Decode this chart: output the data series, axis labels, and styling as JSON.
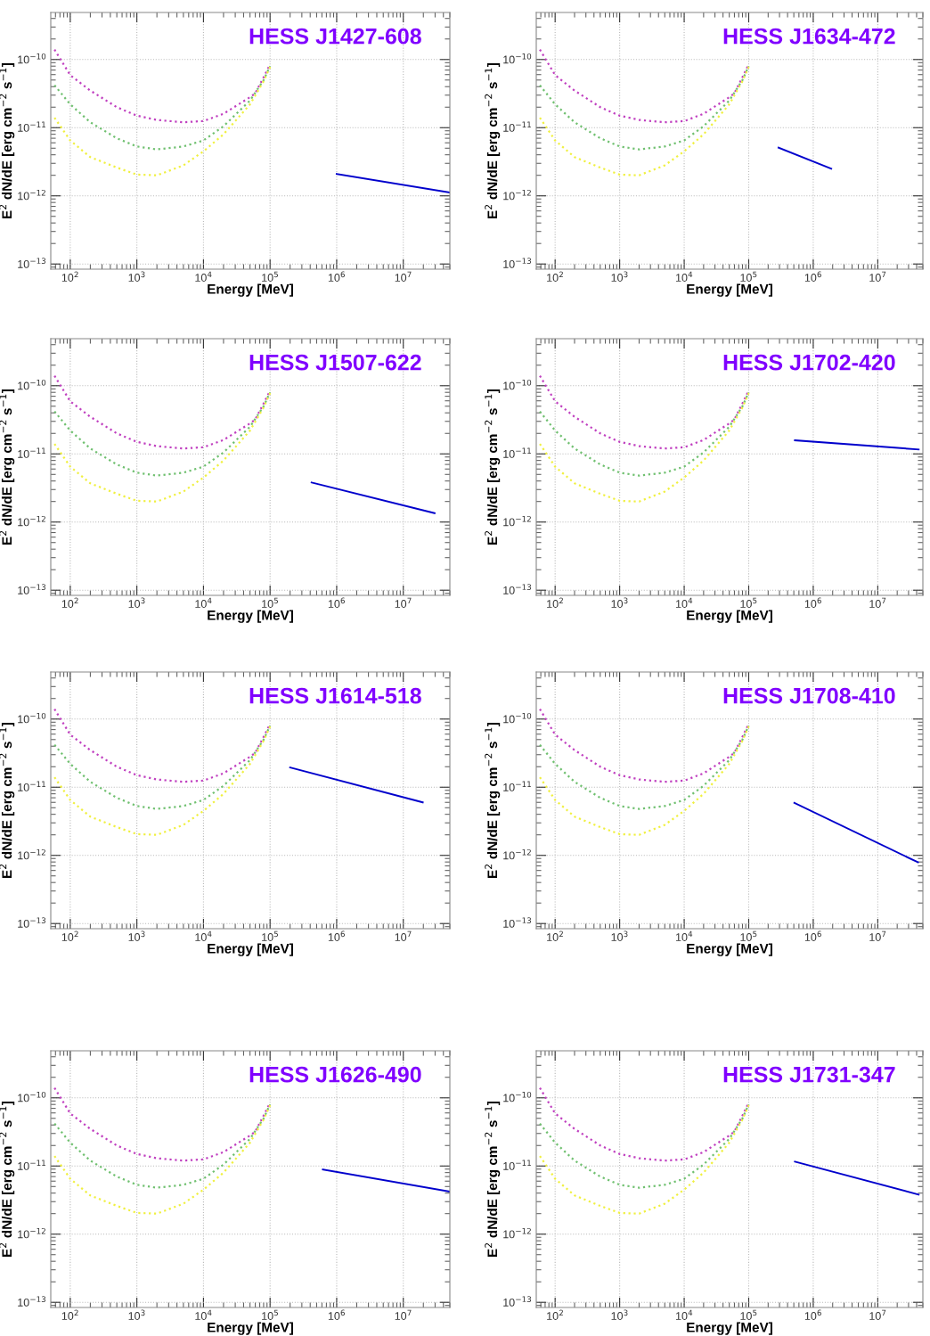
{
  "chart_data": [
    {
      "type": "line",
      "title": "HESS J1427-608",
      "xlabel": "Energy [MeV]",
      "ylabel": "E$^{2}$ dN/dE [erg cm$^{−2}$ s$^{−1}$]",
      "log": "xy",
      "grid": true,
      "line_style": "dotted",
      "xlim": [
        51,
        50000000
      ],
      "ylim": [
        8.4e-14,
        4.9e-10
      ],
      "xticks": [
        {
          "value": 100,
          "label": "10$^{2}$"
        },
        {
          "value": 1000,
          "label": "10$^{3}$"
        },
        {
          "value": 10000,
          "label": "10$^{4}$"
        },
        {
          "value": 100000,
          "label": "10$^{5}$"
        },
        {
          "value": 1000000,
          "label": "10$^{6}$"
        },
        {
          "value": 10000000,
          "label": "10$^{7}$"
        }
      ],
      "yticks": [
        {
          "value": 1e-13,
          "label": "10$^{−13}$"
        },
        {
          "value": 1e-12,
          "label": "10$^{−12}$"
        },
        {
          "value": 1e-11,
          "label": "10$^{−11}$"
        },
        {
          "value": 1e-10,
          "label": "10$^{−10}$"
        }
      ],
      "series": [
        {
          "color": "#c040c0",
          "x": [
            58,
            100,
            200,
            500,
            1000,
            2000,
            5000,
            10000,
            20000,
            50000,
            60000,
            80000,
            100000
          ],
          "values": [
            1.4e-10,
            5.9e-11,
            3.5e-11,
            2e-11,
            1.5e-11,
            1.3e-11,
            1.2e-11,
            1.25e-11,
            1.6e-11,
            2.8e-11,
            3.2e-11,
            5.5e-11,
            8.5e-11
          ]
        },
        {
          "color": "#70c070",
          "x": [
            58,
            100,
            200,
            500,
            1000,
            2000,
            5000,
            10000,
            20000,
            50000,
            80000,
            100000
          ],
          "values": [
            4.2e-11,
            2.2e-11,
            1.2e-11,
            7e-12,
            5.3e-12,
            4.8e-12,
            5.3e-12,
            6.5e-12,
            1.05e-11,
            2.5e-11,
            5e-11,
            8e-11
          ]
        },
        {
          "color": "#f0f040",
          "x": [
            58,
            100,
            200,
            500,
            1000,
            2000,
            5000,
            10000,
            20000,
            50000,
            80000,
            100000
          ],
          "values": [
            1.4e-11,
            6.5e-12,
            3.7e-12,
            2.6e-12,
            2.05e-12,
            2e-12,
            2.8e-12,
            4.5e-12,
            8e-12,
            2.2e-11,
            4.8e-11,
            7.8e-11
          ]
        },
        {
          "color": "#0000cc",
          "line_style": "solid",
          "x": [
            1000000,
            50000000
          ],
          "values": [
            2.1e-12,
            1.12e-12
          ]
        }
      ]
    },
    {
      "type": "line",
      "title": "HESS J1634-472",
      "xlabel": "Energy [MeV]",
      "ylabel": "E$^{2}$ dN/dE [erg cm$^{−2}$ s$^{−1}$]",
      "log": "xy",
      "grid": true,
      "line_style": "dotted",
      "xlim": [
        51,
        50000000
      ],
      "ylim": [
        8.4e-14,
        4.9e-10
      ],
      "xticks": [
        {
          "value": 100,
          "label": "10$^{2}$"
        },
        {
          "value": 1000,
          "label": "10$^{3}$"
        },
        {
          "value": 10000,
          "label": "10$^{4}$"
        },
        {
          "value": 100000,
          "label": "10$^{5}$"
        },
        {
          "value": 1000000,
          "label": "10$^{6}$"
        },
        {
          "value": 10000000,
          "label": "10$^{7}$"
        }
      ],
      "yticks": [
        {
          "value": 1e-13,
          "label": "10$^{−13}$"
        },
        {
          "value": 1e-12,
          "label": "10$^{−12}$"
        },
        {
          "value": 1e-11,
          "label": "10$^{−11}$"
        },
        {
          "value": 1e-10,
          "label": "10$^{−10}$"
        }
      ],
      "series": [
        {
          "color": "#c040c0",
          "x": [
            58,
            100,
            200,
            500,
            1000,
            2000,
            5000,
            10000,
            20000,
            50000,
            60000,
            80000,
            100000
          ],
          "values": [
            1.4e-10,
            5.9e-11,
            3.5e-11,
            2e-11,
            1.5e-11,
            1.3e-11,
            1.2e-11,
            1.25e-11,
            1.6e-11,
            2.8e-11,
            3.2e-11,
            5.5e-11,
            8.5e-11
          ]
        },
        {
          "color": "#70c070",
          "x": [
            58,
            100,
            200,
            500,
            1000,
            2000,
            5000,
            10000,
            20000,
            50000,
            80000,
            100000
          ],
          "values": [
            4.2e-11,
            2.2e-11,
            1.2e-11,
            7e-12,
            5.3e-12,
            4.8e-12,
            5.3e-12,
            6.5e-12,
            1.05e-11,
            2.5e-11,
            5e-11,
            8e-11
          ]
        },
        {
          "color": "#f0f040",
          "x": [
            58,
            100,
            200,
            500,
            1000,
            2000,
            5000,
            10000,
            20000,
            50000,
            80000,
            100000
          ],
          "values": [
            1.4e-11,
            6.5e-12,
            3.7e-12,
            2.6e-12,
            2.05e-12,
            2e-12,
            2.8e-12,
            4.5e-12,
            8e-12,
            2.2e-11,
            4.8e-11,
            7.8e-11
          ]
        },
        {
          "color": "#0000cc",
          "line_style": "solid",
          "x": [
            290000,
            1900000
          ],
          "values": [
            5.1e-12,
            2.5e-12
          ]
        }
      ]
    },
    {
      "type": "line",
      "title": "HESS J1507-622",
      "xlabel": "Energy [MeV]",
      "ylabel": "E$^{2}$ dN/dE [erg cm$^{−2}$ s$^{−1}$]",
      "log": "xy",
      "grid": true,
      "line_style": "dotted",
      "xlim": [
        51,
        50000000
      ],
      "ylim": [
        8.4e-14,
        4.9e-10
      ],
      "xticks": [
        {
          "value": 100,
          "label": "10$^{2}$"
        },
        {
          "value": 1000,
          "label": "10$^{3}$"
        },
        {
          "value": 10000,
          "label": "10$^{4}$"
        },
        {
          "value": 100000,
          "label": "10$^{5}$"
        },
        {
          "value": 1000000,
          "label": "10$^{6}$"
        },
        {
          "value": 10000000,
          "label": "10$^{7}$"
        }
      ],
      "yticks": [
        {
          "value": 1e-13,
          "label": "10$^{−13}$"
        },
        {
          "value": 1e-12,
          "label": "10$^{−12}$"
        },
        {
          "value": 1e-11,
          "label": "10$^{−11}$"
        },
        {
          "value": 1e-10,
          "label": "10$^{−10}$"
        }
      ],
      "series": [
        {
          "color": "#c040c0",
          "x": [
            58,
            100,
            200,
            500,
            1000,
            2000,
            5000,
            10000,
            20000,
            50000,
            60000,
            80000,
            100000
          ],
          "values": [
            1.4e-10,
            5.9e-11,
            3.5e-11,
            2e-11,
            1.5e-11,
            1.3e-11,
            1.2e-11,
            1.25e-11,
            1.6e-11,
            2.8e-11,
            3.2e-11,
            5.5e-11,
            8.5e-11
          ]
        },
        {
          "color": "#70c070",
          "x": [
            58,
            100,
            200,
            500,
            1000,
            2000,
            5000,
            10000,
            20000,
            50000,
            80000,
            100000
          ],
          "values": [
            4.2e-11,
            2.2e-11,
            1.2e-11,
            7e-12,
            5.3e-12,
            4.8e-12,
            5.3e-12,
            6.5e-12,
            1.05e-11,
            2.5e-11,
            5e-11,
            8e-11
          ]
        },
        {
          "color": "#f0f040",
          "x": [
            58,
            100,
            200,
            500,
            1000,
            2000,
            5000,
            10000,
            20000,
            50000,
            80000,
            100000
          ],
          "values": [
            1.4e-11,
            6.5e-12,
            3.7e-12,
            2.6e-12,
            2.05e-12,
            2e-12,
            2.8e-12,
            4.5e-12,
            8e-12,
            2.2e-11,
            4.8e-11,
            7.8e-11
          ]
        },
        {
          "color": "#0000cc",
          "line_style": "solid",
          "x": [
            420000,
            29500000
          ],
          "values": [
            3.8e-12,
            1.35e-12
          ]
        }
      ]
    },
    {
      "type": "line",
      "title": "HESS J1702-420",
      "xlabel": "Energy [MeV]",
      "ylabel": "E$^{2}$ dN/dE [erg cm$^{−2}$ s$^{−1}$]",
      "log": "xy",
      "grid": true,
      "line_style": "dotted",
      "xlim": [
        51,
        50000000
      ],
      "ylim": [
        8.4e-14,
        4.9e-10
      ],
      "xticks": [
        {
          "value": 100,
          "label": "10$^{2}$"
        },
        {
          "value": 1000,
          "label": "10$^{3}$"
        },
        {
          "value": 10000,
          "label": "10$^{4}$"
        },
        {
          "value": 100000,
          "label": "10$^{5}$"
        },
        {
          "value": 1000000,
          "label": "10$^{6}$"
        },
        {
          "value": 10000000,
          "label": "10$^{7}$"
        }
      ],
      "yticks": [
        {
          "value": 1e-13,
          "label": "10$^{−13}$"
        },
        {
          "value": 1e-12,
          "label": "10$^{−12}$"
        },
        {
          "value": 1e-11,
          "label": "10$^{−11}$"
        },
        {
          "value": 1e-10,
          "label": "10$^{−10}$"
        }
      ],
      "series": [
        {
          "color": "#c040c0",
          "x": [
            58,
            100,
            200,
            500,
            1000,
            2000,
            5000,
            10000,
            20000,
            50000,
            60000,
            80000,
            100000
          ],
          "values": [
            1.4e-10,
            5.9e-11,
            3.5e-11,
            2e-11,
            1.5e-11,
            1.3e-11,
            1.2e-11,
            1.25e-11,
            1.6e-11,
            2.8e-11,
            3.2e-11,
            5.5e-11,
            8.5e-11
          ]
        },
        {
          "color": "#70c070",
          "x": [
            58,
            100,
            200,
            500,
            1000,
            2000,
            5000,
            10000,
            20000,
            50000,
            80000,
            100000
          ],
          "values": [
            4.2e-11,
            2.2e-11,
            1.2e-11,
            7e-12,
            5.3e-12,
            4.8e-12,
            5.3e-12,
            6.5e-12,
            1.05e-11,
            2.5e-11,
            5e-11,
            8e-11
          ]
        },
        {
          "color": "#f0f040",
          "x": [
            58,
            100,
            200,
            500,
            1000,
            2000,
            5000,
            10000,
            20000,
            50000,
            80000,
            100000
          ],
          "values": [
            1.4e-11,
            6.5e-12,
            3.7e-12,
            2.6e-12,
            2.05e-12,
            2e-12,
            2.8e-12,
            4.5e-12,
            8e-12,
            2.2e-11,
            4.8e-11,
            7.8e-11
          ]
        },
        {
          "color": "#0000cc",
          "line_style": "solid",
          "x": [
            520000,
            43000000
          ],
          "values": [
            1.58e-11,
            1.16e-11
          ]
        }
      ]
    },
    {
      "type": "line",
      "title": "HESS J1614-518",
      "xlabel": "Energy [MeV]",
      "ylabel": "E$^{2}$ dN/dE [erg cm$^{−2}$ s$^{−1}$]",
      "log": "xy",
      "grid": true,
      "line_style": "dotted",
      "xlim": [
        51,
        50000000
      ],
      "ylim": [
        8.4e-14,
        4.9e-10
      ],
      "xticks": [
        {
          "value": 100,
          "label": "10$^{2}$"
        },
        {
          "value": 1000,
          "label": "10$^{3}$"
        },
        {
          "value": 10000,
          "label": "10$^{4}$"
        },
        {
          "value": 100000,
          "label": "10$^{5}$"
        },
        {
          "value": 1000000,
          "label": "10$^{6}$"
        },
        {
          "value": 10000000,
          "label": "10$^{7}$"
        }
      ],
      "yticks": [
        {
          "value": 1e-13,
          "label": "10$^{−13}$"
        },
        {
          "value": 1e-12,
          "label": "10$^{−12}$"
        },
        {
          "value": 1e-11,
          "label": "10$^{−11}$"
        },
        {
          "value": 1e-10,
          "label": "10$^{−10}$"
        }
      ],
      "series": [
        {
          "color": "#c040c0",
          "x": [
            58,
            100,
            200,
            500,
            1000,
            2000,
            5000,
            10000,
            20000,
            50000,
            60000,
            80000,
            100000
          ],
          "values": [
            1.4e-10,
            5.9e-11,
            3.5e-11,
            2e-11,
            1.5e-11,
            1.3e-11,
            1.2e-11,
            1.25e-11,
            1.6e-11,
            2.8e-11,
            3.2e-11,
            5.5e-11,
            8.5e-11
          ]
        },
        {
          "color": "#70c070",
          "x": [
            58,
            100,
            200,
            500,
            1000,
            2000,
            5000,
            10000,
            20000,
            50000,
            80000,
            100000
          ],
          "values": [
            4.2e-11,
            2.2e-11,
            1.2e-11,
            7e-12,
            5.3e-12,
            4.8e-12,
            5.3e-12,
            6.5e-12,
            1.05e-11,
            2.5e-11,
            5e-11,
            8e-11
          ]
        },
        {
          "color": "#f0f040",
          "x": [
            58,
            100,
            200,
            500,
            1000,
            2000,
            5000,
            10000,
            20000,
            50000,
            80000,
            100000
          ],
          "values": [
            1.4e-11,
            6.5e-12,
            3.7e-12,
            2.6e-12,
            2.05e-12,
            2e-12,
            2.8e-12,
            4.5e-12,
            8e-12,
            2.2e-11,
            4.8e-11,
            7.8e-11
          ]
        },
        {
          "color": "#0000cc",
          "line_style": "solid",
          "x": [
            200000,
            19600000
          ],
          "values": [
            1.95e-11,
            6e-12
          ]
        }
      ]
    },
    {
      "type": "line",
      "title": "HESS J1708-410",
      "xlabel": "Energy [MeV]",
      "ylabel": "E$^{2}$ dN/dE [erg cm$^{−2}$ s$^{−1}$]",
      "log": "xy",
      "grid": true,
      "line_style": "dotted",
      "xlim": [
        51,
        50000000
      ],
      "ylim": [
        8.4e-14,
        4.9e-10
      ],
      "xticks": [
        {
          "value": 100,
          "label": "10$^{2}$"
        },
        {
          "value": 1000,
          "label": "10$^{3}$"
        },
        {
          "value": 10000,
          "label": "10$^{4}$"
        },
        {
          "value": 100000,
          "label": "10$^{5}$"
        },
        {
          "value": 1000000,
          "label": "10$^{6}$"
        },
        {
          "value": 10000000,
          "label": "10$^{7}$"
        }
      ],
      "yticks": [
        {
          "value": 1e-13,
          "label": "10$^{−13}$"
        },
        {
          "value": 1e-12,
          "label": "10$^{−12}$"
        },
        {
          "value": 1e-11,
          "label": "10$^{−11}$"
        },
        {
          "value": 1e-10,
          "label": "10$^{−10}$"
        }
      ],
      "series": [
        {
          "color": "#c040c0",
          "x": [
            58,
            100,
            200,
            500,
            1000,
            2000,
            5000,
            10000,
            20000,
            50000,
            60000,
            80000,
            100000
          ],
          "values": [
            1.4e-10,
            5.9e-11,
            3.5e-11,
            2e-11,
            1.5e-11,
            1.3e-11,
            1.2e-11,
            1.25e-11,
            1.6e-11,
            2.8e-11,
            3.2e-11,
            5.5e-11,
            8.5e-11
          ]
        },
        {
          "color": "#70c070",
          "x": [
            58,
            100,
            200,
            500,
            1000,
            2000,
            5000,
            10000,
            20000,
            50000,
            80000,
            100000
          ],
          "values": [
            4.2e-11,
            2.2e-11,
            1.2e-11,
            7e-12,
            5.3e-12,
            4.8e-12,
            5.3e-12,
            6.5e-12,
            1.05e-11,
            2.5e-11,
            5e-11,
            8e-11
          ]
        },
        {
          "color": "#f0f040",
          "x": [
            58,
            100,
            200,
            500,
            1000,
            2000,
            5000,
            10000,
            20000,
            50000,
            80000,
            100000
          ],
          "values": [
            1.4e-11,
            6.5e-12,
            3.7e-12,
            2.6e-12,
            2.05e-12,
            2e-12,
            2.8e-12,
            4.5e-12,
            8e-12,
            2.2e-11,
            4.8e-11,
            7.8e-11
          ]
        },
        {
          "color": "#0000cc",
          "line_style": "solid",
          "x": [
            510000,
            42000000
          ],
          "values": [
            5.9e-12,
            7.9e-13
          ]
        }
      ]
    },
    {
      "type": "line",
      "title": "HESS J1626-490",
      "xlabel": "Energy [MeV]",
      "ylabel": "E$^{2}$ dN/dE [erg cm$^{−2}$ s$^{−1}$]",
      "log": "xy",
      "grid": true,
      "line_style": "dotted",
      "xlim": [
        51,
        50000000
      ],
      "ylim": [
        8.4e-14,
        4.9e-10
      ],
      "xticks": [
        {
          "value": 100,
          "label": "10$^{2}$"
        },
        {
          "value": 1000,
          "label": "10$^{3}$"
        },
        {
          "value": 10000,
          "label": "10$^{4}$"
        },
        {
          "value": 100000,
          "label": "10$^{5}$"
        },
        {
          "value": 1000000,
          "label": "10$^{6}$"
        },
        {
          "value": 10000000,
          "label": "10$^{7}$"
        }
      ],
      "yticks": [
        {
          "value": 1e-13,
          "label": "10$^{−13}$"
        },
        {
          "value": 1e-12,
          "label": "10$^{−12}$"
        },
        {
          "value": 1e-11,
          "label": "10$^{−11}$"
        },
        {
          "value": 1e-10,
          "label": "10$^{−10}$"
        }
      ],
      "series": [
        {
          "color": "#c040c0",
          "x": [
            58,
            100,
            200,
            500,
            1000,
            2000,
            5000,
            10000,
            20000,
            50000,
            60000,
            80000,
            100000
          ],
          "values": [
            1.4e-10,
            5.9e-11,
            3.5e-11,
            2e-11,
            1.5e-11,
            1.3e-11,
            1.2e-11,
            1.25e-11,
            1.6e-11,
            2.8e-11,
            3.2e-11,
            5.5e-11,
            8.5e-11
          ]
        },
        {
          "color": "#70c070",
          "x": [
            58,
            100,
            200,
            500,
            1000,
            2000,
            5000,
            10000,
            20000,
            50000,
            80000,
            100000
          ],
          "values": [
            4.2e-11,
            2.2e-11,
            1.2e-11,
            7e-12,
            5.3e-12,
            4.8e-12,
            5.3e-12,
            6.5e-12,
            1.05e-11,
            2.5e-11,
            5e-11,
            8e-11
          ]
        },
        {
          "color": "#f0f040",
          "x": [
            58,
            100,
            200,
            500,
            1000,
            2000,
            5000,
            10000,
            20000,
            50000,
            80000,
            100000
          ],
          "values": [
            1.4e-11,
            6.5e-12,
            3.7e-12,
            2.6e-12,
            2.05e-12,
            2e-12,
            2.8e-12,
            4.5e-12,
            8e-12,
            2.2e-11,
            4.8e-11,
            7.8e-11
          ]
        },
        {
          "color": "#0000cc",
          "line_style": "solid",
          "x": [
            620000,
            50000000
          ],
          "values": [
            8.9e-12,
            4.2e-12
          ]
        }
      ]
    },
    {
      "type": "line",
      "title": "HESS J1731-347",
      "xlabel": "Energy [MeV]",
      "ylabel": "E$^{2}$ dN/dE [erg cm$^{−2}$ s$^{−1}$]",
      "log": "xy",
      "grid": true,
      "line_style": "dotted",
      "xlim": [
        51,
        50000000
      ],
      "ylim": [
        8.4e-14,
        4.9e-10
      ],
      "xticks": [
        {
          "value": 100,
          "label": "10$^{2}$"
        },
        {
          "value": 1000,
          "label": "10$^{3}$"
        },
        {
          "value": 10000,
          "label": "10$^{4}$"
        },
        {
          "value": 100000,
          "label": "10$^{5}$"
        },
        {
          "value": 1000000,
          "label": "10$^{6}$"
        },
        {
          "value": 10000000,
          "label": "10$^{7}$"
        }
      ],
      "yticks": [
        {
          "value": 1e-13,
          "label": "10$^{−13}$"
        },
        {
          "value": 1e-12,
          "label": "10$^{−12}$"
        },
        {
          "value": 1e-11,
          "label": "10$^{−11}$"
        },
        {
          "value": 1e-10,
          "label": "10$^{−10}$"
        }
      ],
      "series": [
        {
          "color": "#c040c0",
          "x": [
            58,
            100,
            200,
            500,
            1000,
            2000,
            5000,
            10000,
            20000,
            50000,
            60000,
            80000,
            100000
          ],
          "values": [
            1.4e-10,
            5.9e-11,
            3.5e-11,
            2e-11,
            1.5e-11,
            1.3e-11,
            1.2e-11,
            1.25e-11,
            1.6e-11,
            2.8e-11,
            3.2e-11,
            5.5e-11,
            8.5e-11
          ]
        },
        {
          "color": "#70c070",
          "x": [
            58,
            100,
            200,
            500,
            1000,
            2000,
            5000,
            10000,
            20000,
            50000,
            80000,
            100000
          ],
          "values": [
            4.2e-11,
            2.2e-11,
            1.2e-11,
            7e-12,
            5.3e-12,
            4.8e-12,
            5.3e-12,
            6.5e-12,
            1.05e-11,
            2.5e-11,
            5e-11,
            8e-11
          ]
        },
        {
          "color": "#f0f040",
          "x": [
            58,
            100,
            200,
            500,
            1000,
            2000,
            5000,
            10000,
            20000,
            50000,
            80000,
            100000
          ],
          "values": [
            1.4e-11,
            6.5e-12,
            3.7e-12,
            2.6e-12,
            2.05e-12,
            2e-12,
            2.8e-12,
            4.5e-12,
            8e-12,
            2.2e-11,
            4.8e-11,
            7.8e-11
          ]
        },
        {
          "color": "#0000cc",
          "line_style": "solid",
          "x": [
            520000,
            43000000
          ],
          "values": [
            1.16e-11,
            3.8e-12
          ]
        }
      ]
    }
  ]
}
